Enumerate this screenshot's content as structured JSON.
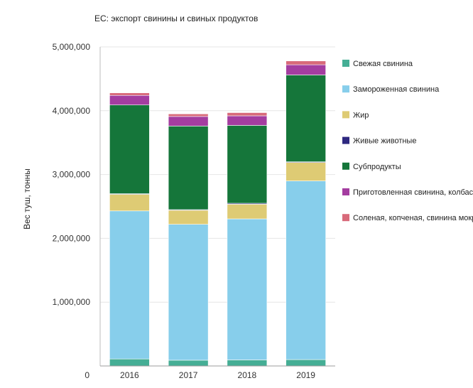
{
  "chart_data": {
    "type": "bar",
    "stacked": true,
    "title": "ЕС:  экспорт свинины и свиных продуктов",
    "xlabel": "",
    "ylabel": "Вес туш, тонны",
    "ylim": [
      0,
      5000000
    ],
    "yticks": [
      {
        "value": 0,
        "label": "0"
      },
      {
        "value": 1000000,
        "label": "1,000,000"
      },
      {
        "value": 2000000,
        "label": "2,000,000"
      },
      {
        "value": 3000000,
        "label": "3,000,000"
      },
      {
        "value": 4000000,
        "label": "4,000,000"
      },
      {
        "value": 5000000,
        "label": "5,000,000"
      }
    ],
    "categories": [
      "2016",
      "2017",
      "2018",
      "2019"
    ],
    "grid": true,
    "legend_position": "right",
    "series": [
      {
        "name": "Свежая свинина",
        "color": "#45AE95",
        "values": [
          110000,
          90000,
          95000,
          100000
        ]
      },
      {
        "name": "Замороженная свинина",
        "color": "#87CEEB",
        "values": [
          2320000,
          2130000,
          2210000,
          2800000
        ]
      },
      {
        "name": "Жир",
        "color": "#DECB74",
        "values": [
          260000,
          220000,
          230000,
          290000
        ]
      },
      {
        "name": "Живые животные",
        "color": "#2E2880",
        "values": [
          10000,
          10000,
          15000,
          10000
        ]
      },
      {
        "name": "Субпродукты",
        "color": "#15763A",
        "values": [
          1390000,
          1310000,
          1220000,
          1360000
        ]
      },
      {
        "name": "Приготовленная свинина, колбаса",
        "color": "#A43DA0",
        "values": [
          150000,
          150000,
          150000,
          160000
        ]
      },
      {
        "name": "Соленая, копченая, свинина мокр",
        "color": "#D86A7A",
        "values": [
          40000,
          40000,
          50000,
          60000
        ]
      }
    ]
  }
}
